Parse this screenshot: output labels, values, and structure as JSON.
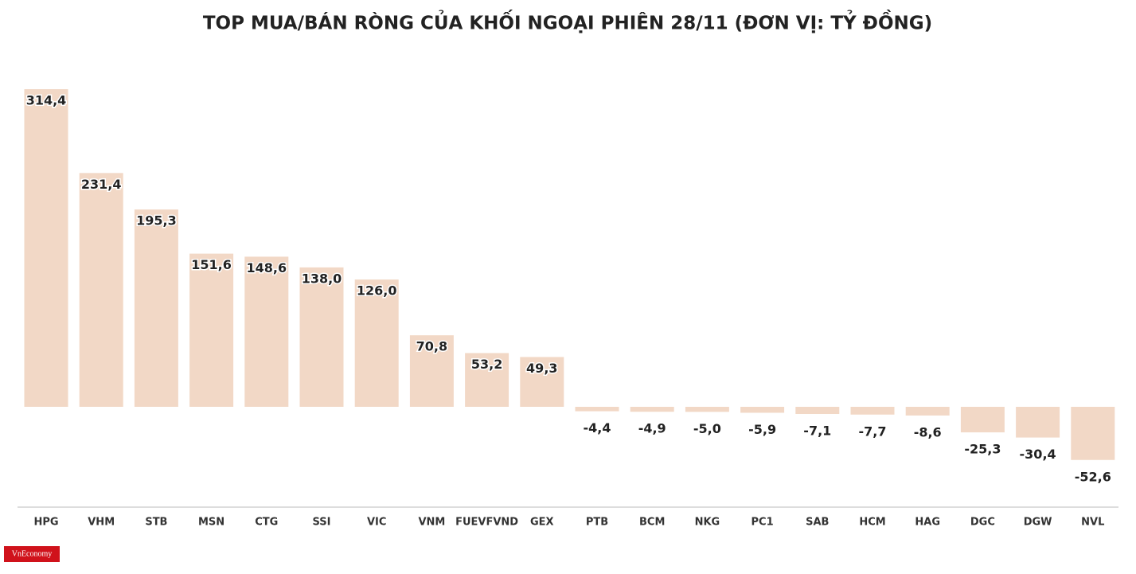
{
  "chart_data": {
    "type": "bar",
    "title": "TOP MUA/BÁN RÒNG CỦA KHỐI NGOẠI PHIÊN 28/11 (ĐƠN VỊ: TỶ ĐỒNG)",
    "categories": [
      "HPG",
      "VHM",
      "STB",
      "MSN",
      "CTG",
      "SSI",
      "VIC",
      "VNM",
      "FUEVFVND",
      "GEX",
      "PTB",
      "BCM",
      "NKG",
      "PC1",
      "SAB",
      "HCM",
      "HAG",
      "DGC",
      "DGW",
      "NVL"
    ],
    "values": [
      314.4,
      231.4,
      195.3,
      151.6,
      148.6,
      138.0,
      126.0,
      70.8,
      53.2,
      49.3,
      -4.4,
      -4.9,
      -5.0,
      -5.9,
      -7.1,
      -7.7,
      -8.6,
      -25.3,
      -30.4,
      -52.6
    ],
    "value_labels": [
      "314,4",
      "231,4",
      "195,3",
      "151,6",
      "148,6",
      "138,0",
      "126,0",
      "70,8",
      "53,2",
      "49,3",
      "-4,4",
      "-4,9",
      "-5,0",
      "-5,9",
      "-7,1",
      "-7,7",
      "-8,6",
      "-25,3",
      "-30,4",
      "-52,6"
    ],
    "color": "#f2d8c6"
  },
  "logo": "VnEconomy"
}
